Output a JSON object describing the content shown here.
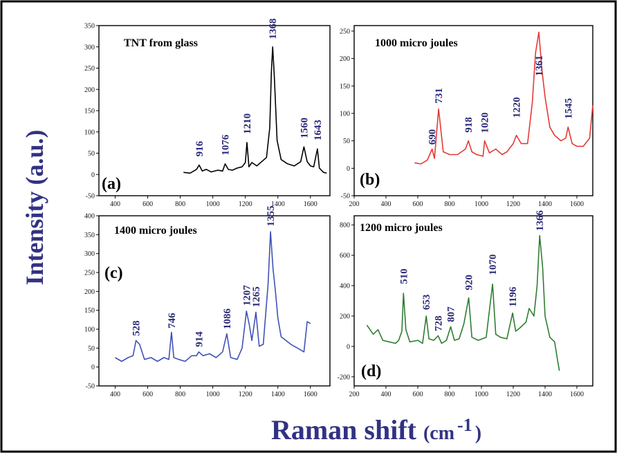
{
  "figure": {
    "ylabel": "Intensity (a.u.)",
    "xlabel_main": "Raman shift",
    "xlabel_unit_open": "(cm",
    "xlabel_unit_sup": "-1",
    "xlabel_unit_close": ")"
  },
  "chart_data": [
    {
      "type": "line",
      "panel_label": "(a)",
      "title": "TNT from glass",
      "color": "#000000",
      "xlim": [
        300,
        1720
      ],
      "ylim": [
        -50,
        350
      ],
      "xticks": [
        400,
        600,
        800,
        1000,
        1200,
        1400,
        1600
      ],
      "yticks": [
        -50,
        0,
        50,
        100,
        150,
        200,
        250,
        300,
        350
      ],
      "x": [
        820,
        860,
        900,
        916,
        935,
        960,
        990,
        1030,
        1060,
        1076,
        1095,
        1120,
        1150,
        1180,
        1200,
        1210,
        1222,
        1240,
        1270,
        1300,
        1330,
        1350,
        1360,
        1368,
        1378,
        1395,
        1420,
        1460,
        1500,
        1540,
        1560,
        1580,
        1600,
        1620,
        1643,
        1655,
        1680,
        1700
      ],
      "y": [
        5,
        3,
        12,
        22,
        8,
        12,
        6,
        10,
        8,
        25,
        12,
        10,
        15,
        18,
        28,
        75,
        18,
        28,
        20,
        30,
        40,
        110,
        240,
        300,
        230,
        80,
        35,
        25,
        20,
        30,
        65,
        30,
        20,
        18,
        60,
        15,
        5,
        3
      ],
      "peak_labels": [
        {
          "text": "916",
          "x": 916,
          "y": 42
        },
        {
          "text": "1076",
          "x": 1076,
          "y": 45
        },
        {
          "text": "1210",
          "x": 1210,
          "y": 95
        },
        {
          "text": "1368",
          "x": 1368,
          "y": 318
        },
        {
          "text": "1560",
          "x": 1560,
          "y": 85
        },
        {
          "text": "1643",
          "x": 1643,
          "y": 80
        }
      ]
    },
    {
      "type": "line",
      "panel_label": "(b)",
      "title": "1000 micro joules",
      "color": "#e53935",
      "xlim": [
        200,
        1700
      ],
      "ylim": [
        -50,
        260
      ],
      "xticks": [
        200,
        400,
        600,
        800,
        1000,
        1200,
        1400,
        1600
      ],
      "yticks": [
        -50,
        0,
        50,
        100,
        150,
        200,
        250
      ],
      "x": [
        580,
        620,
        660,
        690,
        705,
        731,
        760,
        800,
        850,
        900,
        918,
        940,
        970,
        1010,
        1020,
        1050,
        1090,
        1130,
        1160,
        1200,
        1220,
        1250,
        1290,
        1320,
        1340,
        1361,
        1380,
        1400,
        1430,
        1460,
        1500,
        1530,
        1545,
        1570,
        1600,
        1640,
        1680,
        1700
      ],
      "y": [
        10,
        8,
        15,
        35,
        18,
        108,
        30,
        25,
        25,
        35,
        50,
        30,
        25,
        22,
        50,
        28,
        35,
        25,
        30,
        45,
        60,
        45,
        45,
        120,
        210,
        248,
        180,
        130,
        75,
        60,
        50,
        55,
        75,
        45,
        40,
        40,
        55,
        115
      ],
      "peak_labels": [
        {
          "text": "690",
          "x": 690,
          "y": 43
        },
        {
          "text": "731",
          "x": 731,
          "y": 118
        },
        {
          "text": "918",
          "x": 918,
          "y": 65
        },
        {
          "text": "1020",
          "x": 1020,
          "y": 64
        },
        {
          "text": "1220",
          "x": 1220,
          "y": 92
        },
        {
          "text": "1361",
          "x": 1361,
          "y": 168
        },
        {
          "text": "1545",
          "x": 1545,
          "y": 90
        }
      ]
    },
    {
      "type": "line",
      "panel_label": "(c)",
      "title": "1400 micro joules",
      "color": "#3f51b5",
      "xlim": [
        300,
        1720
      ],
      "ylim": [
        -50,
        400
      ],
      "xticks": [
        400,
        600,
        800,
        1000,
        1200,
        1400,
        1600
      ],
      "yticks": [
        -50,
        0,
        50,
        100,
        150,
        200,
        250,
        300,
        350,
        400
      ],
      "x": [
        400,
        440,
        480,
        510,
        528,
        550,
        580,
        620,
        660,
        700,
        730,
        746,
        760,
        790,
        830,
        870,
        900,
        914,
        940,
        980,
        1020,
        1060,
        1086,
        1110,
        1150,
        1180,
        1207,
        1225,
        1240,
        1265,
        1285,
        1310,
        1340,
        1355,
        1370,
        1385,
        1400,
        1420,
        1450,
        1480,
        1520,
        1560,
        1580,
        1600
      ],
      "y": [
        25,
        15,
        25,
        30,
        70,
        60,
        20,
        25,
        15,
        25,
        20,
        92,
        25,
        20,
        15,
        30,
        30,
        40,
        30,
        35,
        25,
        40,
        88,
        25,
        20,
        50,
        148,
        110,
        70,
        145,
        55,
        60,
        220,
        358,
        260,
        200,
        130,
        80,
        70,
        60,
        50,
        40,
        120,
        115
      ],
      "peak_labels": [
        {
          "text": "528",
          "x": 528,
          "y": 82
        },
        {
          "text": "746",
          "x": 746,
          "y": 102
        },
        {
          "text": "914",
          "x": 914,
          "y": 53
        },
        {
          "text": "1086",
          "x": 1086,
          "y": 100
        },
        {
          "text": "1207",
          "x": 1207,
          "y": 162
        },
        {
          "text": "1265",
          "x": 1265,
          "y": 158
        },
        {
          "text": "1355",
          "x": 1355,
          "y": 372
        }
      ]
    },
    {
      "type": "line",
      "panel_label": "(d)",
      "title": "1200 micro joules",
      "color": "#2e7d32",
      "xlim": [
        200,
        1700
      ],
      "ylim": [
        -260,
        860
      ],
      "xticks": [
        200,
        400,
        600,
        800,
        1000,
        1200,
        1400,
        1600
      ],
      "yticks": [
        -200,
        0,
        200,
        400,
        600,
        800
      ],
      "x": [
        280,
        320,
        350,
        380,
        420,
        460,
        480,
        500,
        510,
        525,
        550,
        600,
        630,
        653,
        670,
        700,
        728,
        750,
        780,
        807,
        830,
        860,
        890,
        920,
        940,
        980,
        1030,
        1070,
        1090,
        1120,
        1160,
        1196,
        1215,
        1240,
        1280,
        1300,
        1330,
        1350,
        1366,
        1385,
        1400,
        1430,
        1460,
        1480,
        1490
      ],
      "y": [
        140,
        80,
        110,
        40,
        30,
        20,
        40,
        100,
        350,
        110,
        30,
        40,
        20,
        200,
        50,
        40,
        70,
        20,
        40,
        130,
        40,
        50,
        150,
        320,
        60,
        40,
        60,
        410,
        80,
        60,
        50,
        220,
        100,
        120,
        160,
        250,
        200,
        400,
        730,
        520,
        200,
        60,
        30,
        -100,
        -160
      ],
      "peak_labels": [
        {
          "text": "510",
          "x": 510,
          "y": 410
        },
        {
          "text": "653",
          "x": 653,
          "y": 240
        },
        {
          "text": "728",
          "x": 728,
          "y": 100
        },
        {
          "text": "807",
          "x": 807,
          "y": 160
        },
        {
          "text": "920",
          "x": 920,
          "y": 370
        },
        {
          "text": "1070",
          "x": 1070,
          "y": 470
        },
        {
          "text": "1196",
          "x": 1196,
          "y": 260
        },
        {
          "text": "1366",
          "x": 1366,
          "y": 760
        }
      ]
    }
  ]
}
